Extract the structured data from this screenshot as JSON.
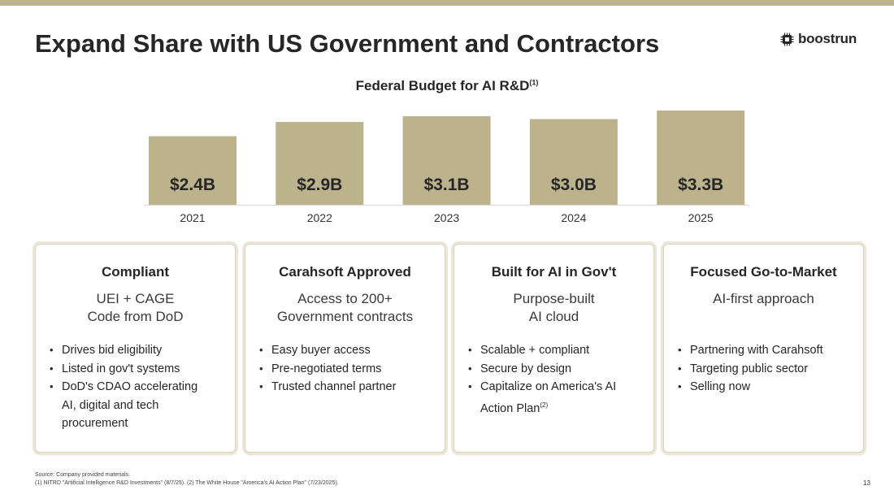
{
  "title": "Expand Share with US Government and Contractors",
  "logo": {
    "text": "boostrun",
    "icon": "chip-icon"
  },
  "colors": {
    "accent": "#bcb38d",
    "bar": "#bcb38d",
    "text": "#262626"
  },
  "chart_data": {
    "type": "bar",
    "title": "Federal Budget for AI R&D",
    "title_sup": "(1)",
    "categories": [
      "2021",
      "2022",
      "2023",
      "2024",
      "2025"
    ],
    "values": [
      2.4,
      2.9,
      3.1,
      3.0,
      3.3
    ],
    "labels": [
      "$2.4B",
      "$2.9B",
      "$3.1B",
      "$3.0B",
      "$3.3B"
    ],
    "xlabel": "",
    "ylabel": "",
    "ylim": [
      0,
      3.3
    ],
    "grid": false,
    "legend": "none"
  },
  "cards": [
    {
      "title": "Compliant",
      "subtitle": [
        "UEI + CAGE",
        "Code from DoD"
      ],
      "bullets": [
        "Drives bid eligibility",
        "Listed in gov't systems",
        "DoD's CDAO accelerating AI, digital and tech procurement"
      ]
    },
    {
      "title": "Carahsoft Approved",
      "subtitle": [
        "Access to 200+",
        "Government contracts"
      ],
      "bullets": [
        "Easy buyer access",
        "Pre-negotiated terms",
        "Trusted channel partner"
      ]
    },
    {
      "title": "Built for AI in Gov't",
      "subtitle": [
        "Purpose-built",
        "AI cloud"
      ],
      "bullets": [
        "Scalable + compliant",
        "Secure by design",
        "Capitalize on America's AI Action Plan"
      ],
      "last_bullet_sup": "(2)"
    },
    {
      "title": "Focused Go-to-Market",
      "subtitle": [
        "AI-first approach"
      ],
      "bullets": [
        "Partnering with Carahsoft",
        "Targeting public sector",
        "Selling now"
      ]
    }
  ],
  "footnotes": {
    "source": "Source: Company provided materials.",
    "notes": "(1) NITRD \"Artificial Intelligence R&D Investments\" (8/7/25). (2) The White House \"America's AI Action Plan\" (7/23/2025)."
  },
  "page_number": "13"
}
